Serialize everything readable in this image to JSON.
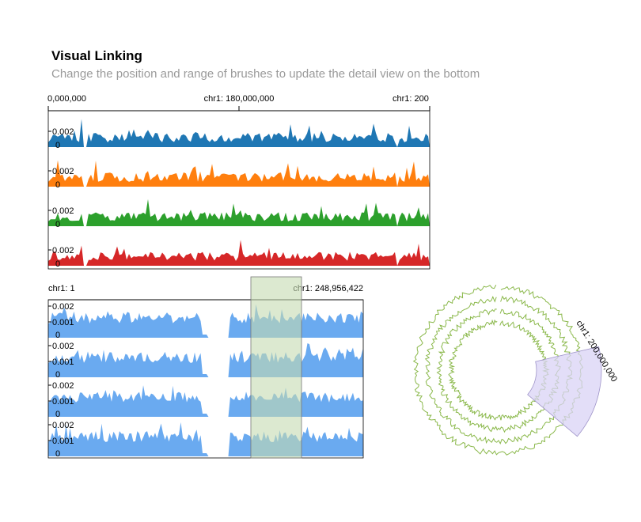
{
  "header": {
    "title": "Visual Linking",
    "subtitle": "Change the position and range of brushes to update the detail view on the bottom"
  },
  "overview": {
    "axis_labels": [
      "0,000,000",
      "chr1: 180,000,000",
      "chr1: 200"
    ],
    "tracks": [
      {
        "color": "#1f77b4",
        "ticks": [
          "0.002",
          "0"
        ]
      },
      {
        "color": "#ff7f0e",
        "ticks": [
          "0.002",
          "0"
        ]
      },
      {
        "color": "#2ca02c",
        "ticks": [
          "0.002",
          "0"
        ]
      },
      {
        "color": "#d62728",
        "ticks": [
          "0.002",
          "0"
        ]
      }
    ]
  },
  "detail": {
    "axis_start": "chr1: 1",
    "axis_end": "chr1: 248,956,422",
    "track_color": "#6aaaf0",
    "tracks": [
      {
        "ticks": [
          "0.002",
          "0.001",
          "0"
        ]
      },
      {
        "ticks": [
          "0.002",
          "0.001",
          "0"
        ]
      },
      {
        "ticks": [
          "0.002",
          "0.001",
          "0"
        ]
      },
      {
        "ticks": [
          "0.002",
          "0.001",
          "0"
        ]
      }
    ],
    "brush_color": "#c5dbb0"
  },
  "circular": {
    "label": "chr1: 200,000,000",
    "line_color": "#8ab84a",
    "brush_color": "#d9d3f5"
  }
}
